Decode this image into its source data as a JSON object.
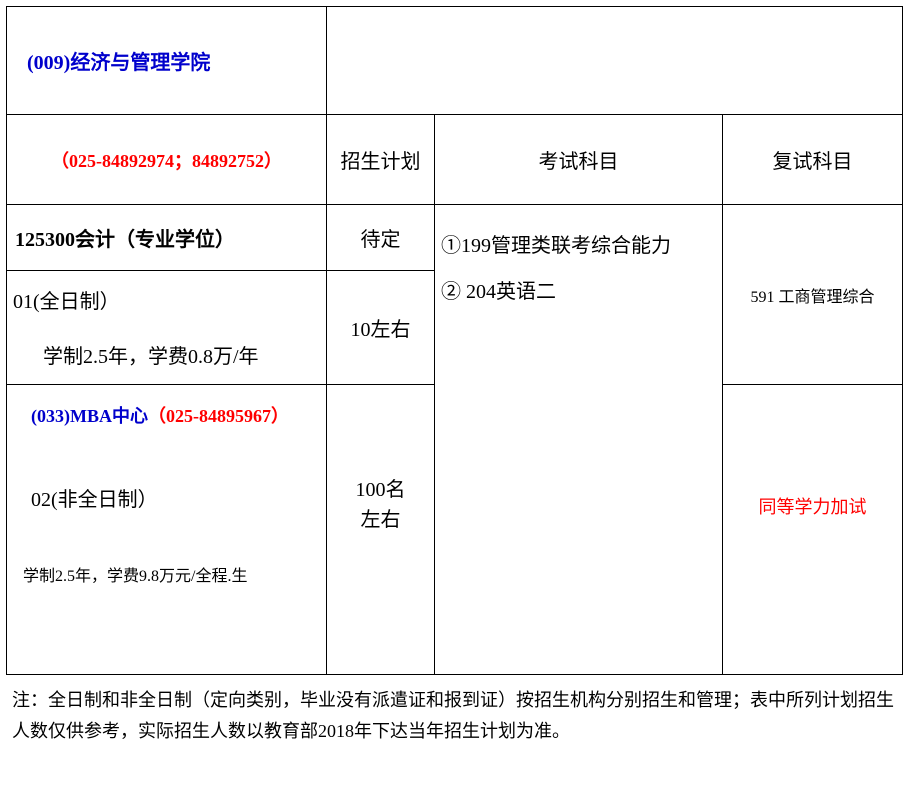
{
  "colors": {
    "border": "#000000",
    "blue": "#0000cc",
    "red": "#ff0000",
    "black": "#000000",
    "background": "#ffffff"
  },
  "department": {
    "title": "(009)经济与管理学院",
    "phone": "（025-84892974；84892752）"
  },
  "headers": {
    "plan": "招生计划",
    "exam": "考试科目",
    "retest": "复试科目"
  },
  "program": {
    "code_line": "125300会计（专业学位）",
    "plan_tbd": "待定"
  },
  "exam": {
    "line1": "①199管理类联考综合能力",
    "line2": "②  204英语二"
  },
  "retest_subject": "591 工商管理综合",
  "fulltime": {
    "label": "01(全日制）",
    "tuition": "学制2.5年，学费0.8万/年",
    "quota": "10左右"
  },
  "mba": {
    "title_prefix": "(033)MBA中心",
    "phone": "（025-84895967）",
    "parttime_label": "02(非全日制）",
    "tuition": "学制2.5年，学费9.8万元/全程.生",
    "quota_l1": "100名",
    "quota_l2": "左右",
    "retest": "同等学力加试"
  },
  "footnote": "注：全日制和非全日制（定向类别，毕业没有派遣证和报到证）按招生机构分别招生和管理；表中所列计划招生人数仅供参考，实际招生人数以教育部2018年下达当年招生计划为准。"
}
